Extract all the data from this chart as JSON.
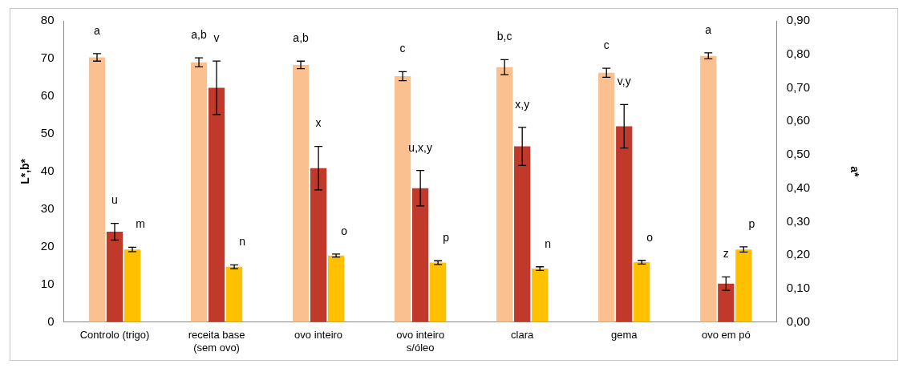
{
  "chart_data": {
    "type": "bar",
    "ylabel": "L*,b*",
    "y2label": "a*",
    "categories": [
      "Controlo (trigo)",
      "receita base (sem ovo)",
      "ovo inteiro",
      "ovo inteiro s/óleo",
      "clara",
      "gema",
      "ovo em pó"
    ],
    "series": [
      {
        "color": "#fac090",
        "values": [
          70.3,
          69.0,
          68.3,
          65.3,
          67.7,
          66.2,
          70.7
        ],
        "errors": [
          1.0,
          1.2,
          1.0,
          1.2,
          2.0,
          1.2,
          0.8
        ]
      },
      {
        "color": "#c0392b",
        "axis": "y2",
        "values": [
          0.27,
          0.7,
          0.46,
          0.4,
          0.525,
          0.585,
          0.115
        ],
        "errors": [
          0.025,
          0.08,
          0.065,
          0.053,
          0.057,
          0.065,
          0.02
        ]
      },
      {
        "color": "#ffc000",
        "values": [
          19.3,
          14.7,
          17.7,
          15.8,
          14.2,
          15.9,
          19.3
        ],
        "errors": [
          0.6,
          0.5,
          0.4,
          0.5,
          0.5,
          0.5,
          0.7
        ]
      }
    ],
    "ylim": [
      0,
      80
    ],
    "yticks": [
      0,
      10,
      20,
      30,
      40,
      50,
      60,
      70,
      80
    ],
    "y2lim": [
      0,
      0.9
    ],
    "y2ticks": [
      {
        "value": 0,
        "label": "0,00"
      },
      {
        "value": 0.1,
        "label": "0,10"
      },
      {
        "value": 0.2,
        "label": "0,20"
      },
      {
        "value": 0.3,
        "label": "0,30"
      },
      {
        "value": 0.4,
        "label": "0,40"
      },
      {
        "value": 0.5,
        "label": "0,50"
      },
      {
        "value": 0.6,
        "label": "0,60"
      },
      {
        "value": 0.7,
        "label": "0,70"
      },
      {
        "value": 0.8,
        "label": "0,80"
      },
      {
        "value": 0.9,
        "label": "0,90"
      }
    ],
    "grid": false,
    "legend": false,
    "annotations": [
      "a",
      "u",
      "m",
      "a,b",
      "v",
      "n",
      "a,b",
      "x",
      "o",
      "c",
      "u,x,y",
      "p",
      "b,c",
      "x,y",
      "n",
      "c",
      "v,y",
      "o",
      "a",
      "z",
      "p"
    ]
  }
}
